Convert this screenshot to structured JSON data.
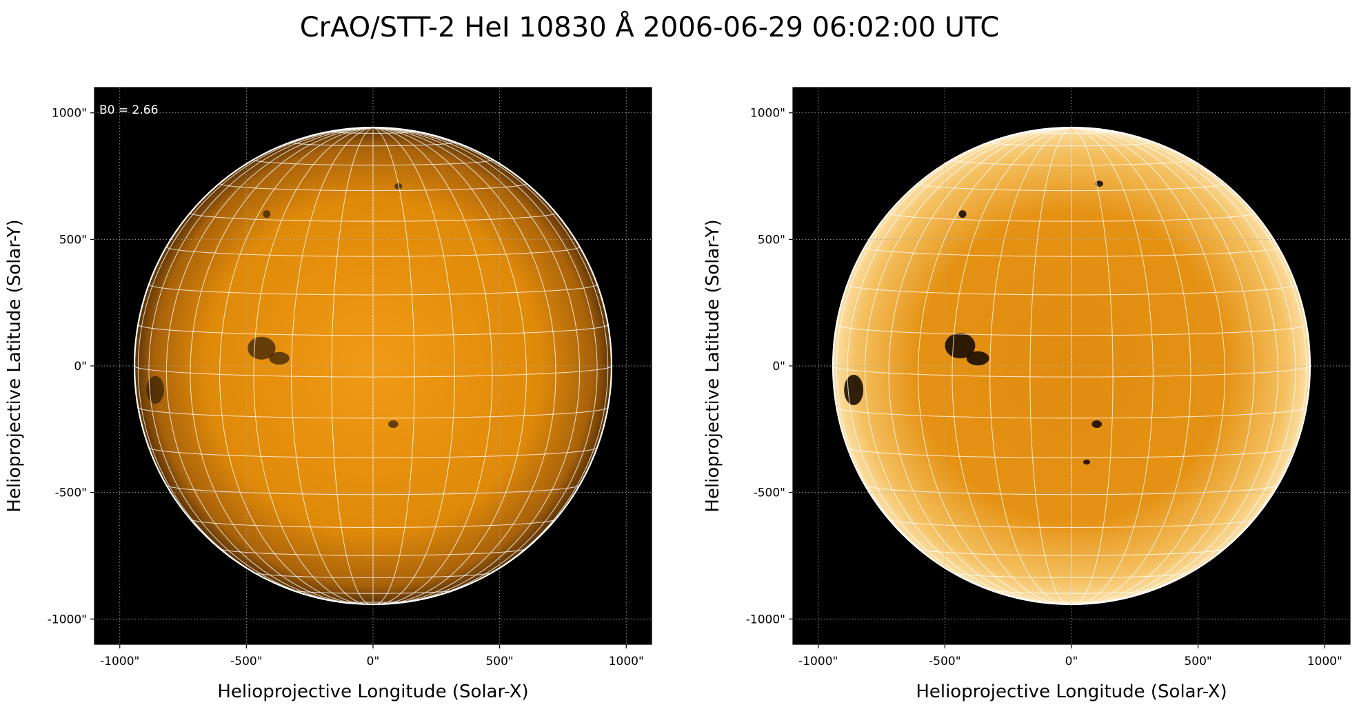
{
  "figure": {
    "title": "CrAO/STT-2 HeI 10830 Å 2006-06-29 06:02:00 UTC"
  },
  "chart_data": [
    {
      "type": "heatmap",
      "panel": "left",
      "title": "",
      "xlabel": "Helioprojective Longitude (Solar-X)",
      "ylabel": "Helioprojective Latitude (Solar-Y)",
      "xlim": [
        -1100,
        1100
      ],
      "ylim": [
        -1100,
        1100
      ],
      "xticks": [
        -1000,
        -500,
        0,
        500,
        1000
      ],
      "yticks": [
        -1000,
        -500,
        0,
        500,
        1000
      ],
      "xtick_labels": [
        "-1000\"",
        "-500\"",
        "0\"",
        "500\"",
        "1000\""
      ],
      "ytick_labels": [
        "-1000\"",
        "-500\"",
        "0\"",
        "500\"",
        "1000\""
      ],
      "grid": true,
      "annotation": "B0 = 2.66",
      "solar_radius_arcsec": 942,
      "b0_deg": 2.66,
      "colormap": "orange (sdo-style)",
      "background_color": "#000000",
      "disk_color": "#e08a0a",
      "limb_color": "#ffffff",
      "dark_features": [
        {
          "x": -440,
          "y": 70,
          "rx": 55,
          "ry": 45
        },
        {
          "x": -370,
          "y": 30,
          "rx": 40,
          "ry": 25
        },
        {
          "x": -860,
          "y": -95,
          "rx": 35,
          "ry": 55
        },
        {
          "x": 80,
          "y": -230,
          "rx": 20,
          "ry": 15
        },
        {
          "x": 100,
          "y": 710,
          "rx": 15,
          "ry": 12
        },
        {
          "x": -420,
          "y": 600,
          "rx": 15,
          "ry": 15
        }
      ]
    },
    {
      "type": "heatmap",
      "panel": "right",
      "title": "",
      "xlabel": "Helioprojective Longitude (Solar-X)",
      "ylabel": "Helioprojective Latitude (Solar-Y)",
      "xlim": [
        -1100,
        1100
      ],
      "ylim": [
        -1100,
        1100
      ],
      "xticks": [
        -1000,
        -500,
        0,
        500,
        1000
      ],
      "yticks": [
        -1000,
        -500,
        0,
        500,
        1000
      ],
      "xtick_labels": [
        "-1000\"",
        "-500\"",
        "0\"",
        "500\"",
        "1000\""
      ],
      "ytick_labels": [
        "-1000\"",
        "-500\"",
        "0\"",
        "500\"",
        "1000\""
      ],
      "grid": true,
      "solar_radius_arcsec": 942,
      "b0_deg": 2.66,
      "colormap": "orange (sdo-style), limb-darkening corrected",
      "background_color": "#000000",
      "disk_color": "#e59214",
      "limb_color": "#ffffff",
      "dark_features": [
        {
          "x": -440,
          "y": 80,
          "rx": 60,
          "ry": 50
        },
        {
          "x": -370,
          "y": 30,
          "rx": 45,
          "ry": 28
        },
        {
          "x": -860,
          "y": -95,
          "rx": 38,
          "ry": 60
        },
        {
          "x": 110,
          "y": 720,
          "rx": 15,
          "ry": 12
        },
        {
          "x": -430,
          "y": 600,
          "rx": 15,
          "ry": 15
        },
        {
          "x": 100,
          "y": -230,
          "rx": 20,
          "ry": 15
        },
        {
          "x": 60,
          "y": -380,
          "rx": 14,
          "ry": 10
        }
      ]
    }
  ]
}
